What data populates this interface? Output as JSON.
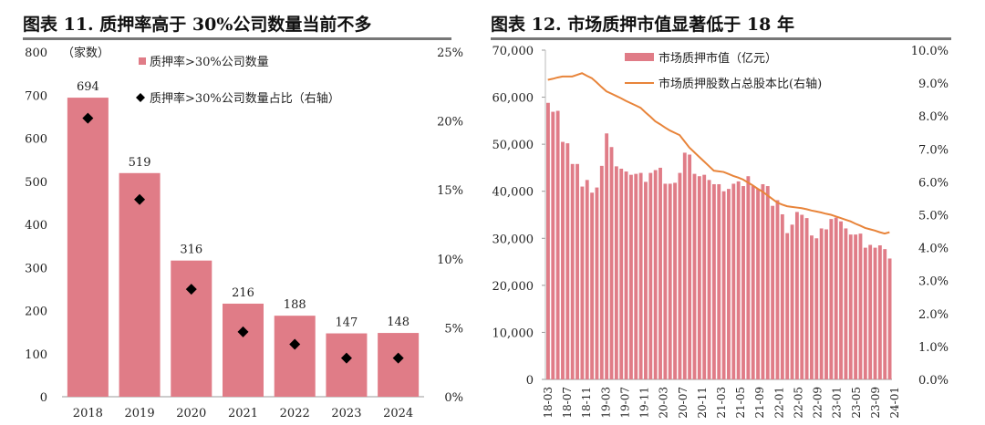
{
  "left": {
    "title": "图表 11. 质押率高于 30%公司数量当前不多",
    "unit_label": "（家数）",
    "legend_bar": "质押率>30%公司数量",
    "legend_marker": "质押率>30%公司数量占比（右轴）",
    "colors": {
      "bar": "#e07c87",
      "marker": "#000000"
    }
  },
  "right": {
    "title": "图表 12. 市场质押市值显著低于 18 年",
    "legend_bar": "市场质押市值（亿元）",
    "legend_line": "市场质押股数占总股本比(右轴)",
    "colors": {
      "bar": "#e07c87",
      "line": "#e8843a"
    }
  },
  "chart_data": [
    {
      "type": "bar",
      "title": "图表 11. 质押率高于 30%公司数量当前不多",
      "categories": [
        "2018",
        "2019",
        "2020",
        "2021",
        "2022",
        "2023",
        "2024"
      ],
      "series": [
        {
          "name": "质押率>30%公司数量",
          "axis": "left",
          "values": [
            694,
            519,
            316,
            216,
            188,
            147,
            148
          ],
          "data_labels": [
            "694",
            "519",
            "316",
            "216",
            "188",
            "147",
            "148"
          ]
        },
        {
          "name": "质押率>30%公司数量占比（右轴）",
          "axis": "right",
          "kind": "scatter",
          "values": [
            20.2,
            14.3,
            7.8,
            4.7,
            3.8,
            2.8,
            2.8
          ]
        }
      ],
      "ylim": [
        0,
        800
      ],
      "y_ticks": [
        "0",
        "100",
        "200",
        "300",
        "400",
        "500",
        "600",
        "700",
        "800"
      ],
      "y2lim": [
        0,
        25
      ],
      "y2_ticks": [
        "0%",
        "5%",
        "10%",
        "15%",
        "20%",
        "25%"
      ],
      "legend": "top-center",
      "grid": false
    },
    {
      "type": "bar",
      "title": "图表 12. 市场质押市值显著低于 18 年",
      "x_start": "18-03",
      "x_ticks": [
        "18-03",
        "18-07",
        "18-11",
        "19-03",
        "19-07",
        "19-11",
        "20-03",
        "20-07",
        "20-11",
        "21-03",
        "21-05",
        "21-09",
        "22-01",
        "22-05",
        "22-09",
        "23-01",
        "23-05",
        "23-09",
        "24-01"
      ],
      "series": [
        {
          "name": "市场质押市值（亿元）",
          "axis": "left",
          "values": [
            58800,
            56900,
            57100,
            50500,
            50200,
            45800,
            45800,
            41000,
            42400,
            39700,
            40800,
            45400,
            52300,
            49400,
            45300,
            44800,
            44200,
            43500,
            43700,
            43900,
            42000,
            43900,
            44500,
            45000,
            41600,
            41600,
            41800,
            43900,
            48200,
            47800,
            43700,
            43200,
            43500,
            42400,
            41500,
            41500,
            40000,
            40500,
            41600,
            42100,
            41100,
            43200,
            41100,
            40500,
            41500,
            41100,
            36900,
            38100,
            35100,
            31100,
            32900,
            35600,
            35000,
            34300,
            30600,
            30000,
            32100,
            31900,
            34100,
            34400,
            33600,
            32100,
            30800,
            30800,
            31000,
            28000,
            28600,
            28000,
            28500,
            27700,
            25700
          ]
        },
        {
          "name": "市场质押股数占总股本比(右轴)",
          "axis": "right",
          "kind": "line",
          "values": [
            9.1,
            9.13,
            9.17,
            9.2,
            9.2,
            9.2,
            9.25,
            9.3,
            9.22,
            9.15,
            9.02,
            8.88,
            8.75,
            8.68,
            8.61,
            8.54,
            8.46,
            8.39,
            8.32,
            8.25,
            8.11,
            7.98,
            7.84,
            7.75,
            7.65,
            7.56,
            7.49,
            7.42,
            7.23,
            7.04,
            6.9,
            6.76,
            6.62,
            6.48,
            6.34,
            6.32,
            6.3,
            6.24,
            6.18,
            6.13,
            6.07,
            5.98,
            5.89,
            5.79,
            5.7,
            5.59,
            5.48,
            5.37,
            5.31,
            5.26,
            5.24,
            5.22,
            5.2,
            5.17,
            5.13,
            5.1,
            5.07,
            5.03,
            5.0,
            4.95,
            4.9,
            4.85,
            4.8,
            4.73,
            4.67,
            4.6,
            4.56,
            4.52,
            4.47,
            4.43,
            4.47
          ]
        }
      ],
      "ylim": [
        0,
        70000
      ],
      "y_ticks": [
        "0",
        "10,000",
        "20,000",
        "30,000",
        "40,000",
        "50,000",
        "60,000",
        "70,000"
      ],
      "y2lim": [
        0,
        10
      ],
      "y2_ticks": [
        "0.0%",
        "1.0%",
        "2.0%",
        "3.0%",
        "4.0%",
        "5.0%",
        "6.0%",
        "7.0%",
        "8.0%",
        "9.0%",
        "10.0%"
      ],
      "legend": "top-center",
      "grid": false
    }
  ]
}
